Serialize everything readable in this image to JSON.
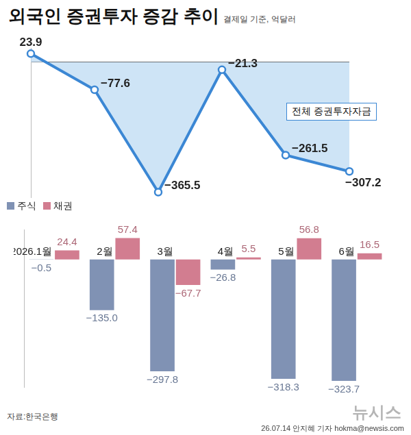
{
  "chart_data": [
    {
      "type": "area",
      "title": "외국인 증권투자 증감 추이",
      "subtitle": "결제일 기준, 억달러",
      "categories": [
        null,
        null,
        null,
        null,
        null,
        null
      ],
      "series": [
        {
          "name": "전체 증권투자자금",
          "color": "#3b87d4",
          "marker": "circle",
          "values": [
            23.9,
            -77.6,
            -365.5,
            -21.3,
            -261.5,
            -307.2
          ],
          "value_labels": [
            "23.9",
            "−77.6",
            "−365.5",
            "−21.3",
            "−261.5",
            "−307.2"
          ]
        }
      ],
      "ylim": [
        -380,
        40
      ],
      "yticks": [
        0
      ],
      "grid": true,
      "tick_labels": false,
      "data_labels": true
    },
    {
      "type": "bar",
      "categories": [
        "2026.1월",
        "2월",
        "3월",
        "4월",
        "5월",
        "6월"
      ],
      "series": [
        {
          "name": "주식",
          "color": "#8092b4",
          "values": [
            -0.5,
            -135.0,
            -297.8,
            -26.8,
            -318.3,
            -323.7
          ],
          "value_labels": [
            "−0.5",
            "−135.0",
            "−297.8",
            "−26.8",
            "−318.3",
            "−323.7"
          ]
        },
        {
          "name": "채권",
          "color": "#d27d90",
          "values": [
            24.4,
            57.4,
            -67.7,
            5.5,
            56.8,
            16.5
          ],
          "value_labels": [
            "24.4",
            "57.4",
            "−67.7",
            "5.5",
            "56.8",
            "16.5"
          ]
        }
      ],
      "ylim": [
        -340,
        80
      ],
      "grid": false,
      "tick_labels": "x",
      "legend": "upper left",
      "data_labels": true
    }
  ],
  "source": "자료:한국은행",
  "credit": "26.07.14 안지혜 기자 hokma@newsis.com",
  "logo": "뉴시스"
}
